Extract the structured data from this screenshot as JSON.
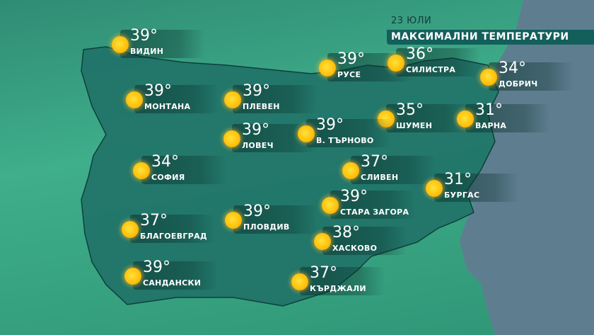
{
  "header": {
    "date": "23 ЮЛИ",
    "title": "МАКСИМАЛНИ ТЕМПЕРАТУРИ"
  },
  "colors": {
    "land": "#2f8c74",
    "country": "#1f6f66",
    "sea": "#5e7e90",
    "title_bar": "#135f5b",
    "sun": "#ffc20e"
  },
  "cities": [
    {
      "name": "ВИДИН",
      "temp": "39°",
      "icon": "sun-icon"
    },
    {
      "name": "РУСЕ",
      "temp": "39°",
      "icon": "sun-icon"
    },
    {
      "name": "СИЛИСТРА",
      "temp": "36°",
      "icon": "sun-icon"
    },
    {
      "name": "ДОБРИЧ",
      "temp": "34°",
      "icon": "sun-icon"
    },
    {
      "name": "МОНТАНА",
      "temp": "39°",
      "icon": "sun-icon"
    },
    {
      "name": "ПЛЕВЕН",
      "temp": "39°",
      "icon": "sun-icon"
    },
    {
      "name": "ШУМЕН",
      "temp": "35°",
      "icon": "sun-icon"
    },
    {
      "name": "ВАРНА",
      "temp": "31°",
      "icon": "sun-icon"
    },
    {
      "name": "ЛОВЕЧ",
      "temp": "39°",
      "icon": "sun-icon"
    },
    {
      "name": "В. ТЪРНОВО",
      "temp": "39°",
      "icon": "sun-icon"
    },
    {
      "name": "СОФИЯ",
      "temp": "34°",
      "icon": "sun-icon"
    },
    {
      "name": "СЛИВЕН",
      "temp": "37°",
      "icon": "sun-icon"
    },
    {
      "name": "БУРГАС",
      "temp": "31°",
      "icon": "sun-icon"
    },
    {
      "name": "СТАРА ЗАГОРА",
      "temp": "39°",
      "icon": "sun-icon"
    },
    {
      "name": "БЛАГОЕВГРАД",
      "temp": "37°",
      "icon": "sun-icon"
    },
    {
      "name": "ПЛОВДИВ",
      "temp": "39°",
      "icon": "sun-icon"
    },
    {
      "name": "ХАСКОВО",
      "temp": "38°",
      "icon": "sun-icon"
    },
    {
      "name": "САНДАНСКИ",
      "temp": "39°",
      "icon": "sun-icon"
    },
    {
      "name": "КЪРДЖАЛИ",
      "temp": "37°",
      "icon": "sun-icon"
    }
  ]
}
